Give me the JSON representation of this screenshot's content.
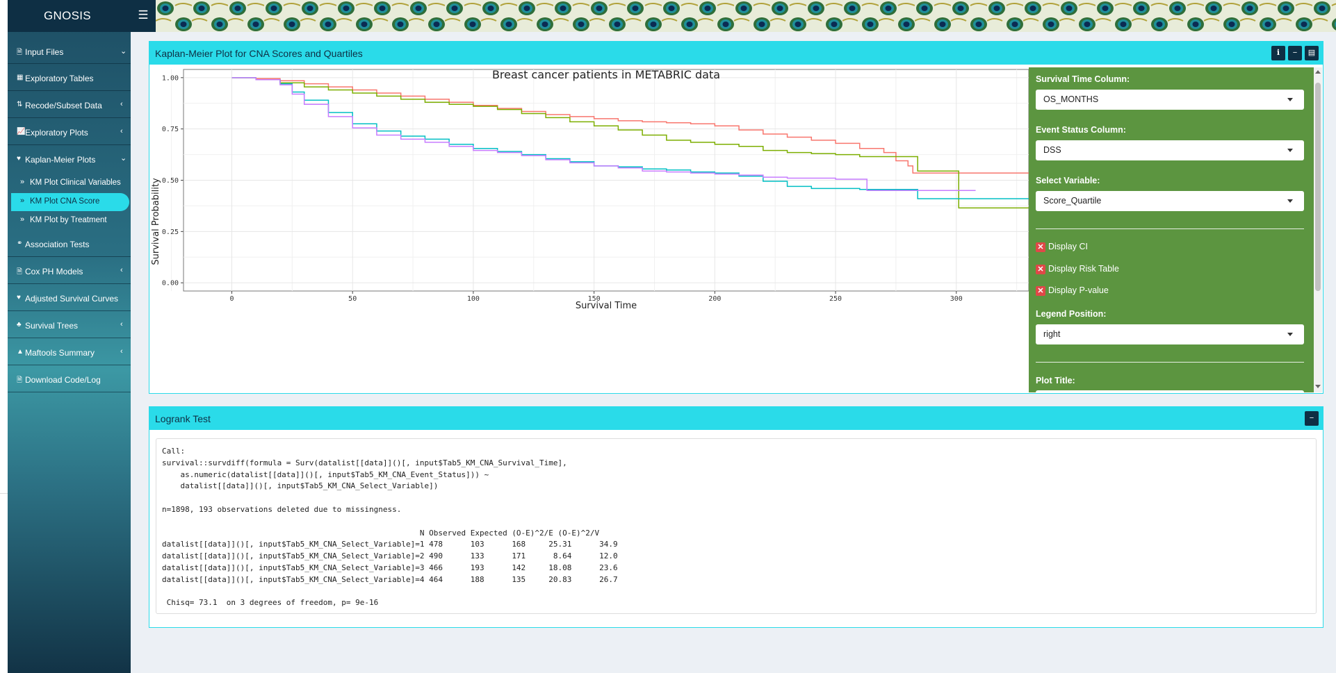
{
  "app": {
    "name": "GNOSIS"
  },
  "sidebar": {
    "items": [
      {
        "label": "Input Files",
        "icon": "file-icon",
        "chevron": "down"
      },
      {
        "label": "Exploratory Tables",
        "icon": "table-icon",
        "chevron": ""
      },
      {
        "label": "Recode/Subset Data",
        "icon": "sort-icon",
        "chevron": "left"
      },
      {
        "label": "Exploratory Plots",
        "icon": "line-chart-icon",
        "chevron": "left"
      },
      {
        "label": "Kaplan-Meier Plots",
        "icon": "heartbeat-icon",
        "chevron": "down"
      },
      {
        "label": "Association Tests",
        "icon": "connect-icon",
        "chevron": ""
      },
      {
        "label": "Cox PH Models",
        "icon": "file-icon",
        "chevron": "left"
      },
      {
        "label": "Adjusted Survival Curves",
        "icon": "heartbeat-icon",
        "chevron": ""
      },
      {
        "label": "Survival Trees",
        "icon": "tree-icon",
        "chevron": "left"
      },
      {
        "label": "Maftools Summary",
        "icon": "warning-icon",
        "chevron": "left"
      },
      {
        "label": "Download Code/Log",
        "icon": "file-icon",
        "chevron": ""
      }
    ],
    "subitems": [
      {
        "label": "KM Plot Clinical Variables"
      },
      {
        "label": "KM Plot CNA Score"
      },
      {
        "label": "KM Plot by Treatment"
      }
    ]
  },
  "km_box": {
    "title": "Kaplan-Meier Plot for CNA Scores and Quartiles"
  },
  "controls": {
    "survival_time": {
      "label": "Survival Time Column:",
      "value": "OS_MONTHS"
    },
    "event_status": {
      "label": "Event Status Column:",
      "value": "DSS"
    },
    "select_variable": {
      "label": "Select Variable:",
      "value": "Score_Quartile"
    },
    "checkboxes": [
      "Display CI",
      "Display Risk Table",
      "Display P-value"
    ],
    "legend_position": {
      "label": "Legend Position:",
      "value": "right"
    },
    "plot_title": {
      "label": "Plot Title:"
    }
  },
  "chart_data": {
    "type": "line",
    "title": "Breast cancer patients in METABRIC data",
    "xlabel": "Survival Time",
    "ylabel": "Survival Probability",
    "xlim": [
      -20,
      330
    ],
    "ylim": [
      -0.04,
      1.04
    ],
    "xticks": [
      "0",
      "50",
      "100",
      "150",
      "200",
      "250",
      "300"
    ],
    "yticks": [
      "0.00",
      "0.25",
      "0.50",
      "0.75",
      "1.00"
    ],
    "series": [
      {
        "color": "#f8766d",
        "points": [
          [
            0,
            1.0
          ],
          [
            10,
            0.995
          ],
          [
            20,
            0.985
          ],
          [
            30,
            0.97
          ],
          [
            40,
            0.955
          ],
          [
            50,
            0.94
          ],
          [
            60,
            0.925
          ],
          [
            70,
            0.91
          ],
          [
            80,
            0.895
          ],
          [
            90,
            0.88
          ],
          [
            100,
            0.865
          ],
          [
            110,
            0.85
          ],
          [
            120,
            0.835
          ],
          [
            130,
            0.82
          ],
          [
            140,
            0.81
          ],
          [
            150,
            0.8
          ],
          [
            160,
            0.79
          ],
          [
            170,
            0.785
          ],
          [
            180,
            0.78
          ],
          [
            190,
            0.775
          ],
          [
            200,
            0.765
          ],
          [
            210,
            0.745
          ],
          [
            220,
            0.725
          ],
          [
            230,
            0.71
          ],
          [
            240,
            0.695
          ],
          [
            250,
            0.68
          ],
          [
            260,
            0.655
          ],
          [
            270,
            0.635
          ],
          [
            275,
            0.595
          ],
          [
            280,
            0.57
          ],
          [
            282,
            0.535
          ],
          [
            300,
            0.535
          ],
          [
            330,
            0.535
          ]
        ]
      },
      {
        "color": "#7cae00",
        "points": [
          [
            0,
            1.0
          ],
          [
            10,
            0.99
          ],
          [
            20,
            0.975
          ],
          [
            30,
            0.955
          ],
          [
            40,
            0.94
          ],
          [
            50,
            0.925
          ],
          [
            60,
            0.91
          ],
          [
            70,
            0.895
          ],
          [
            80,
            0.88
          ],
          [
            90,
            0.87
          ],
          [
            100,
            0.86
          ],
          [
            110,
            0.845
          ],
          [
            120,
            0.825
          ],
          [
            130,
            0.805
          ],
          [
            140,
            0.785
          ],
          [
            150,
            0.765
          ],
          [
            160,
            0.745
          ],
          [
            170,
            0.72
          ],
          [
            180,
            0.695
          ],
          [
            190,
            0.685
          ],
          [
            200,
            0.675
          ],
          [
            210,
            0.665
          ],
          [
            220,
            0.645
          ],
          [
            230,
            0.635
          ],
          [
            240,
            0.63
          ],
          [
            250,
            0.625
          ],
          [
            260,
            0.615
          ],
          [
            280,
            0.615
          ],
          [
            284,
            0.545
          ],
          [
            300,
            0.545
          ],
          [
            301,
            0.365
          ],
          [
            330,
            0.365
          ]
        ]
      },
      {
        "color": "#00bfc4",
        "points": [
          [
            0,
            1.0
          ],
          [
            10,
            0.99
          ],
          [
            20,
            0.97
          ],
          [
            25,
            0.93
          ],
          [
            30,
            0.89
          ],
          [
            40,
            0.83
          ],
          [
            50,
            0.775
          ],
          [
            60,
            0.74
          ],
          [
            70,
            0.715
          ],
          [
            80,
            0.7
          ],
          [
            90,
            0.675
          ],
          [
            100,
            0.655
          ],
          [
            110,
            0.64
          ],
          [
            120,
            0.625
          ],
          [
            130,
            0.605
          ],
          [
            140,
            0.59
          ],
          [
            150,
            0.57
          ],
          [
            160,
            0.565
          ],
          [
            170,
            0.555
          ],
          [
            180,
            0.55
          ],
          [
            190,
            0.54
          ],
          [
            200,
            0.535
          ],
          [
            210,
            0.52
          ],
          [
            220,
            0.495
          ],
          [
            230,
            0.47
          ],
          [
            240,
            0.46
          ],
          [
            250,
            0.46
          ],
          [
            260,
            0.455
          ],
          [
            283,
            0.455
          ],
          [
            284,
            0.41
          ],
          [
            330,
            0.41
          ]
        ]
      },
      {
        "color": "#c77cff",
        "points": [
          [
            0,
            1.0
          ],
          [
            10,
            0.99
          ],
          [
            20,
            0.965
          ],
          [
            25,
            0.92
          ],
          [
            30,
            0.87
          ],
          [
            40,
            0.81
          ],
          [
            50,
            0.755
          ],
          [
            60,
            0.72
          ],
          [
            70,
            0.7
          ],
          [
            80,
            0.685
          ],
          [
            90,
            0.665
          ],
          [
            100,
            0.645
          ],
          [
            110,
            0.635
          ],
          [
            120,
            0.62
          ],
          [
            130,
            0.6
          ],
          [
            140,
            0.585
          ],
          [
            150,
            0.57
          ],
          [
            160,
            0.56
          ],
          [
            170,
            0.545
          ],
          [
            180,
            0.54
          ],
          [
            190,
            0.535
          ],
          [
            200,
            0.53
          ],
          [
            210,
            0.525
          ],
          [
            220,
            0.515
          ],
          [
            230,
            0.51
          ],
          [
            240,
            0.51
          ],
          [
            250,
            0.505
          ],
          [
            262,
            0.505
          ],
          [
            263,
            0.45
          ],
          [
            283,
            0.45
          ],
          [
            284,
            0.45
          ],
          [
            308,
            0.45
          ]
        ]
      }
    ]
  },
  "logrank_box": {
    "title": "Logrank Test"
  },
  "logrank_output": {
    "lines": [
      "Call:",
      "survival::survdiff(formula = Surv(datalist[[data]]()[, input$Tab5_KM_CNA_Survival_Time],",
      "    as.numeric(datalist[[data]]()[, input$Tab5_KM_CNA_Event_Status])) ~",
      "    datalist[[data]]()[, input$Tab5_KM_CNA_Select_Variable])",
      "",
      "n=1898, 193 observations deleted due to missingness.",
      "",
      "                                                        N Observed Expected (O-E)^2/E (O-E)^2/V",
      "datalist[[data]]()[, input$Tab5_KM_CNA_Select_Variable]=1 478      103      168     25.31      34.9",
      "datalist[[data]]()[, input$Tab5_KM_CNA_Select_Variable]=2 490      133      171      8.64      12.0",
      "datalist[[data]]()[, input$Tab5_KM_CNA_Select_Variable]=3 466      193      142     18.08      23.6",
      "datalist[[data]]()[, input$Tab5_KM_CNA_Select_Variable]=4 464      188      135     20.83      26.7",
      "",
      " Chisq= 73.1  on 3 degrees of freedom, p= 9e-16"
    ]
  }
}
